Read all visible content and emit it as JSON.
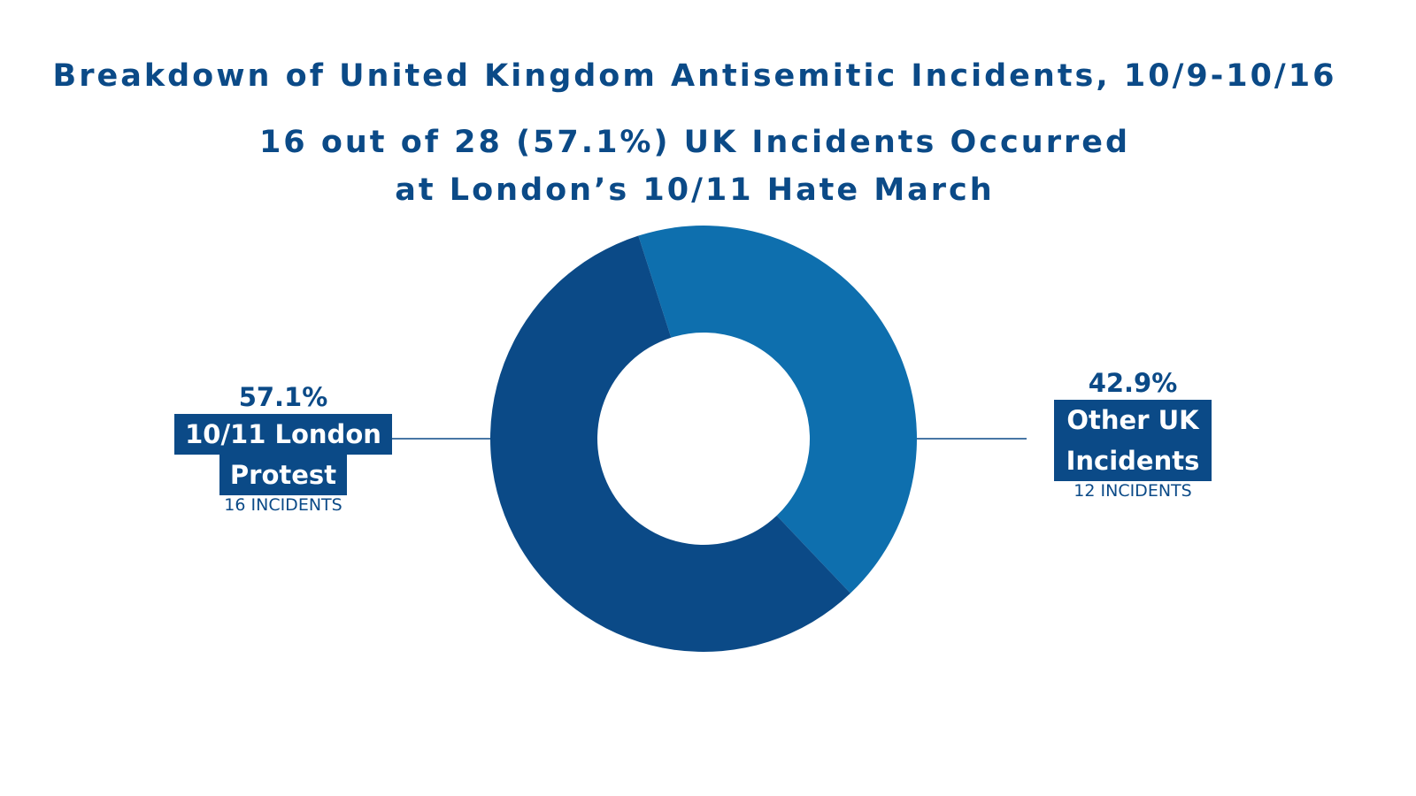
{
  "chart_data": {
    "type": "pie",
    "donut": true,
    "title": "Breakdown of United Kingdom Antisemitic Incidents, 10/9-10/16",
    "subtitle": "16 out of 28 (57.1%) UK Incidents Occurred at London’s 10/11 Hate March",
    "slices": [
      {
        "label": "Other UK Incidents",
        "value": 12,
        "percent_label": "42.9%",
        "count_label": "12 INCIDENTS",
        "color": "#0e6fae"
      },
      {
        "label": "10/11 London Protest",
        "value": 16,
        "percent_label": "57.1%",
        "count_label": "16 INCIDENTS",
        "color": "#0b4a87"
      }
    ],
    "line1": "10/11 London",
    "line2": "Protest",
    "other1": "Other UK",
    "other2": "Incidents"
  }
}
